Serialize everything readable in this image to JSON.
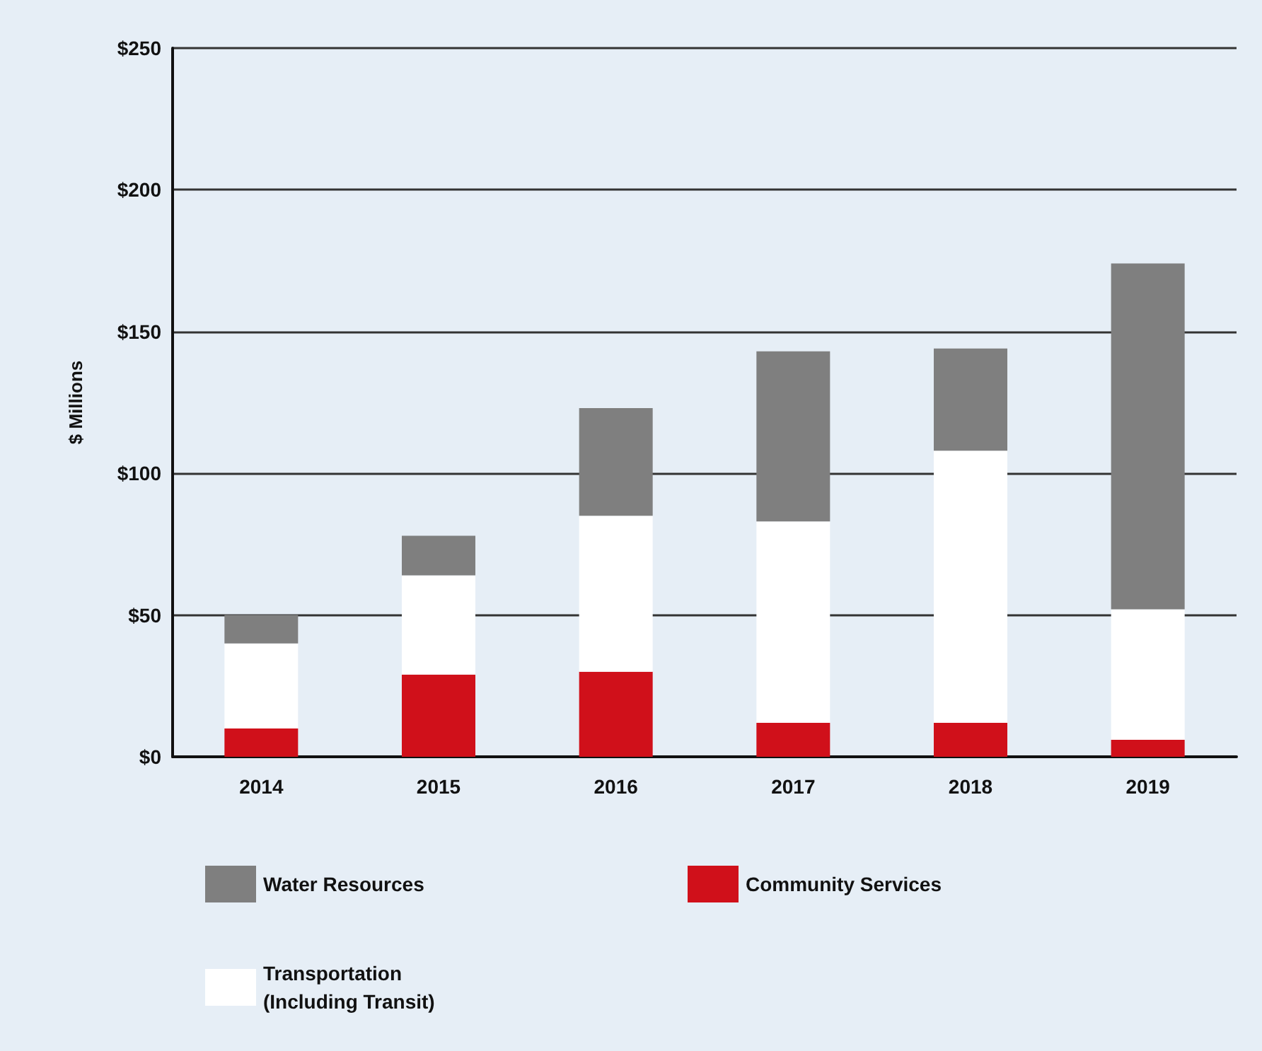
{
  "chart_data": {
    "type": "bar",
    "stacked": true,
    "ylabel": "$ Millions",
    "categories": [
      "2014",
      "2015",
      "2016",
      "2017",
      "2018",
      "2019"
    ],
    "series": [
      {
        "name": "Community Services",
        "color": "#d0101a",
        "values": [
          10,
          29,
          30,
          12,
          12,
          6
        ]
      },
      {
        "name": "Transportation (Including Transit)",
        "color": "#ffffff",
        "values": [
          30,
          35,
          55,
          71,
          96,
          46
        ]
      },
      {
        "name": "Water Resources",
        "color": "#7f7f7f",
        "values": [
          10,
          14,
          38,
          60,
          36,
          122
        ]
      }
    ],
    "ylim": [
      0,
      250
    ],
    "yticks": [
      {
        "value": 0,
        "label": "$0"
      },
      {
        "value": 50,
        "label": "$50"
      },
      {
        "value": 100,
        "label": "$100"
      },
      {
        "value": 150,
        "label": "$150"
      },
      {
        "value": 200,
        "label": "$200"
      },
      {
        "value": 250,
        "label": "$250"
      }
    ],
    "grid": "y",
    "legend": "bottom"
  }
}
